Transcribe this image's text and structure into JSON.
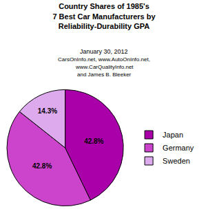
{
  "chart_data": {
    "type": "pie",
    "title": [
      "Country Shares of 1985's",
      "7 Best Car Manufacturers by",
      "Reliability-Durability GPA"
    ],
    "subtitle": [
      "January 30, 2012",
      "CarsOnInfo.net, www.AutoOnInfo.net,",
      "www.CarQualityInfo.net",
      "and James B. Bleeker"
    ],
    "categories": [
      "Japan",
      "Germany",
      "Sweden"
    ],
    "values": [
      42.8,
      42.8,
      14.3
    ],
    "value_labels": [
      "42.8%",
      "42.8%",
      "14.3%"
    ],
    "colors": [
      "#aa00aa",
      "#cc44cc",
      "#ddaaee"
    ],
    "data_labels": true,
    "legend": "right"
  }
}
